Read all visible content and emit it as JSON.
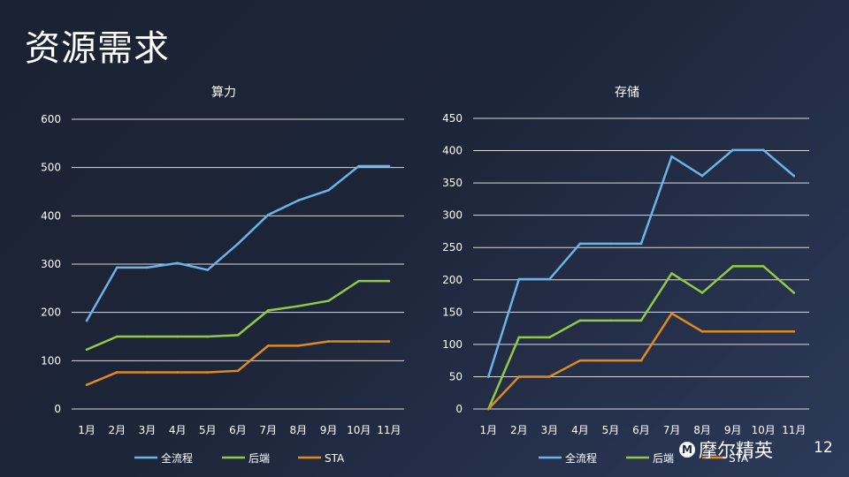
{
  "slide": {
    "title": "资源需求",
    "brand": "摩尔精英",
    "brand_logo": "M",
    "page_number": "12"
  },
  "colors": {
    "全流程": "#6cb4e8",
    "后端": "#93c947",
    "STA": "#e08a1e",
    "grid": "#d9d9d9",
    "text": "#ffffff"
  },
  "chart_data": [
    {
      "type": "line",
      "title": "算力",
      "categories": [
        "1月",
        "2月",
        "3月",
        "4月",
        "5月",
        "6月",
        "7月",
        "8月",
        "9月",
        "10月",
        "11月"
      ],
      "ylim": [
        0,
        600
      ],
      "yticks": [
        0,
        100,
        200,
        300,
        400,
        500,
        600
      ],
      "grid": true,
      "legend": "bottom",
      "series": [
        {
          "name": "全流程",
          "values": [
            183,
            293,
            293,
            302,
            288,
            342,
            402,
            432,
            453,
            503,
            503
          ]
        },
        {
          "name": "后端",
          "values": [
            123,
            150,
            150,
            150,
            150,
            153,
            204,
            213,
            224,
            265,
            265
          ]
        },
        {
          "name": "STA",
          "values": [
            50,
            76,
            76,
            76,
            76,
            79,
            131,
            131,
            140,
            140,
            140
          ]
        }
      ]
    },
    {
      "type": "line",
      "title": "存储",
      "categories": [
        "1月",
        "2月",
        "3月",
        "4月",
        "5月",
        "6月",
        "7月",
        "8月",
        "9月",
        "10月",
        "11月"
      ],
      "ylim": [
        0,
        450
      ],
      "yticks": [
        0,
        50,
        100,
        150,
        200,
        250,
        300,
        350,
        400,
        450
      ],
      "grid": true,
      "legend": "bottom",
      "series": [
        {
          "name": "全流程",
          "values": [
            50,
            201,
            201,
            256,
            256,
            256,
            391,
            361,
            401,
            401,
            361
          ]
        },
        {
          "name": "后端",
          "values": [
            0,
            111,
            111,
            137,
            137,
            137,
            210,
            180,
            221,
            221,
            180
          ]
        },
        {
          "name": "STA",
          "values": [
            0,
            50,
            50,
            75,
            75,
            75,
            148,
            120,
            120,
            120,
            120
          ]
        }
      ]
    }
  ]
}
